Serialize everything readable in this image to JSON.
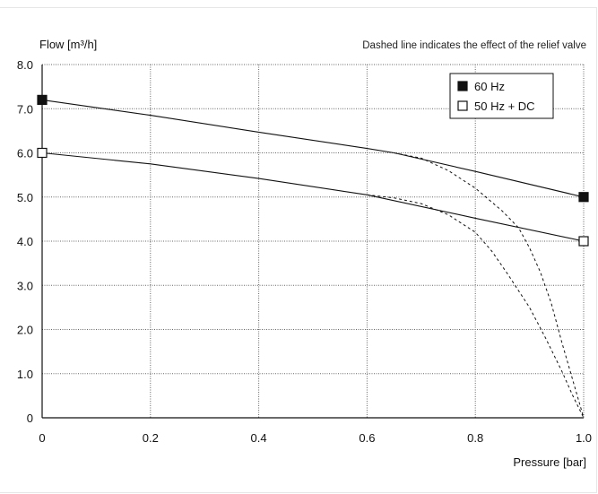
{
  "chart_data": {
    "type": "line",
    "ylabel": "Flow [m³/h]",
    "xlabel": "Pressure [bar]",
    "note": "Dashed line indicates the effect of the relief valve",
    "xlim": [
      0,
      1.0
    ],
    "ylim": [
      0,
      8.0
    ],
    "xticks": [
      {
        "value": 0,
        "label": "0"
      },
      {
        "value": 0.2,
        "label": "0.2"
      },
      {
        "value": 0.4,
        "label": "0.4"
      },
      {
        "value": 0.6,
        "label": "0.6"
      },
      {
        "value": 0.8,
        "label": "0.8"
      },
      {
        "value": 1.0,
        "label": "1.0"
      }
    ],
    "yticks": [
      {
        "value": 0,
        "label": "0"
      },
      {
        "value": 1.0,
        "label": "1.0"
      },
      {
        "value": 2.0,
        "label": "2.0"
      },
      {
        "value": 3.0,
        "label": "3.0"
      },
      {
        "value": 4.0,
        "label": "4.0"
      },
      {
        "value": 5.0,
        "label": "5.0"
      },
      {
        "value": 6.0,
        "label": "6.0"
      },
      {
        "value": 7.0,
        "label": "7.0"
      },
      {
        "value": 8.0,
        "label": "8.0"
      }
    ],
    "grid": true,
    "legend_position": "top-right",
    "series": [
      {
        "name": "60 Hz",
        "marker": "filled-square",
        "color": "#111111",
        "x": [
          0,
          0.2,
          0.4,
          0.6,
          0.65,
          0.8,
          1.0
        ],
        "y": [
          7.2,
          6.85,
          6.47,
          6.1,
          6.0,
          5.58,
          5.0
        ],
        "markers": [
          {
            "x": 0,
            "y": 7.2
          },
          {
            "x": 1.0,
            "y": 5.0
          }
        ],
        "relief_valve": {
          "x": [
            0.65,
            0.7,
            0.75,
            0.8,
            0.85,
            0.88,
            0.9,
            0.92,
            0.94,
            0.96,
            0.98,
            1.0
          ],
          "y": [
            6.0,
            5.88,
            5.6,
            5.2,
            4.68,
            4.3,
            3.85,
            3.3,
            2.6,
            1.7,
            0.85,
            0
          ]
        }
      },
      {
        "name": "50 Hz + DC",
        "marker": "open-square",
        "color": "#111111",
        "x": [
          0,
          0.2,
          0.4,
          0.6,
          0.8,
          1.0
        ],
        "y": [
          6.0,
          5.75,
          5.42,
          5.05,
          4.52,
          4.0
        ],
        "markers": [
          {
            "x": 0,
            "y": 6.0
          },
          {
            "x": 1.0,
            "y": 4.0
          }
        ],
        "relief_valve": {
          "x": [
            0.6,
            0.65,
            0.7,
            0.75,
            0.8,
            0.83,
            0.86,
            0.9,
            0.93,
            0.96,
            0.98,
            1.0
          ],
          "y": [
            5.05,
            4.98,
            4.85,
            4.6,
            4.2,
            3.78,
            3.25,
            2.5,
            1.8,
            1.05,
            0.5,
            0
          ]
        }
      }
    ]
  }
}
